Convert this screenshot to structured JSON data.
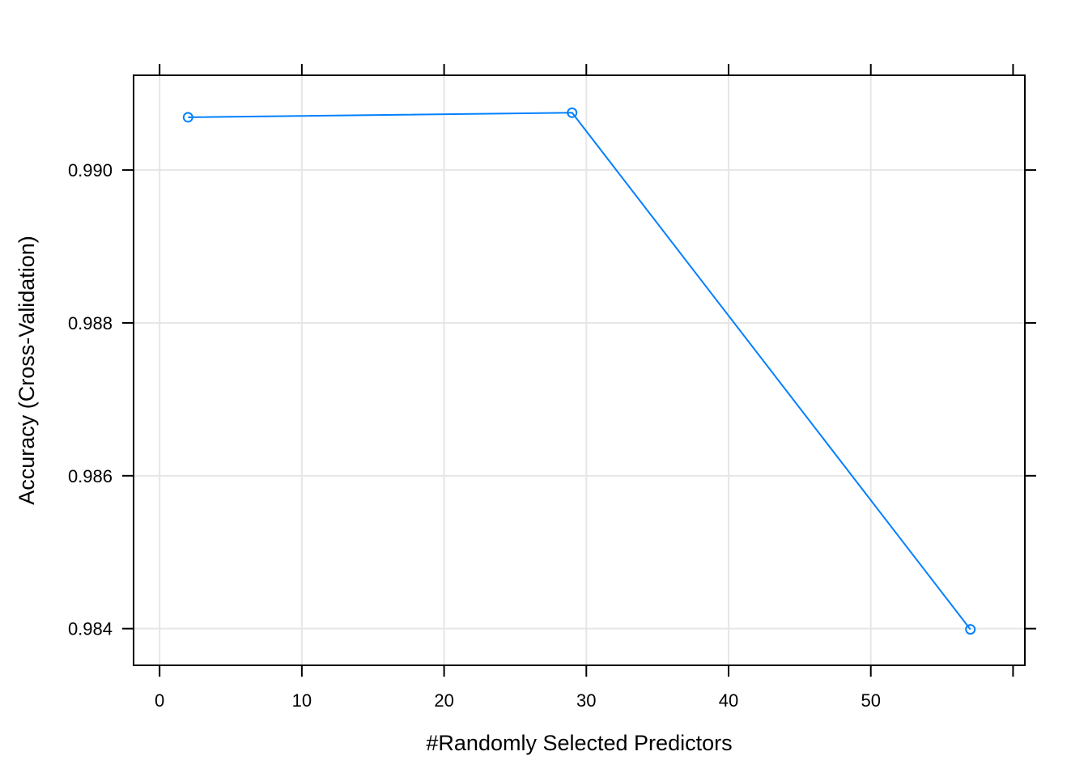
{
  "chart_data": {
    "type": "line",
    "title": "",
    "xlabel": "#Randomly Selected Predictors",
    "ylabel": "Accuracy (Cross-Validation)",
    "xlim": [
      -1.83,
      60.83
    ],
    "ylim": [
      0.98352,
      0.99124
    ],
    "x_ticks": [
      0,
      10,
      20,
      30,
      40,
      50
    ],
    "y_ticks": [
      0.984,
      0.986,
      0.988,
      0.99
    ],
    "y_tick_labels": [
      "0.984",
      "0.986",
      "0.988",
      "0.990"
    ],
    "grid": true,
    "legend": "none",
    "series": [
      {
        "x": [
          2,
          29,
          57
        ],
        "y": [
          0.99069,
          0.99075,
          0.98399
        ],
        "color": "#0080ff"
      }
    ]
  }
}
